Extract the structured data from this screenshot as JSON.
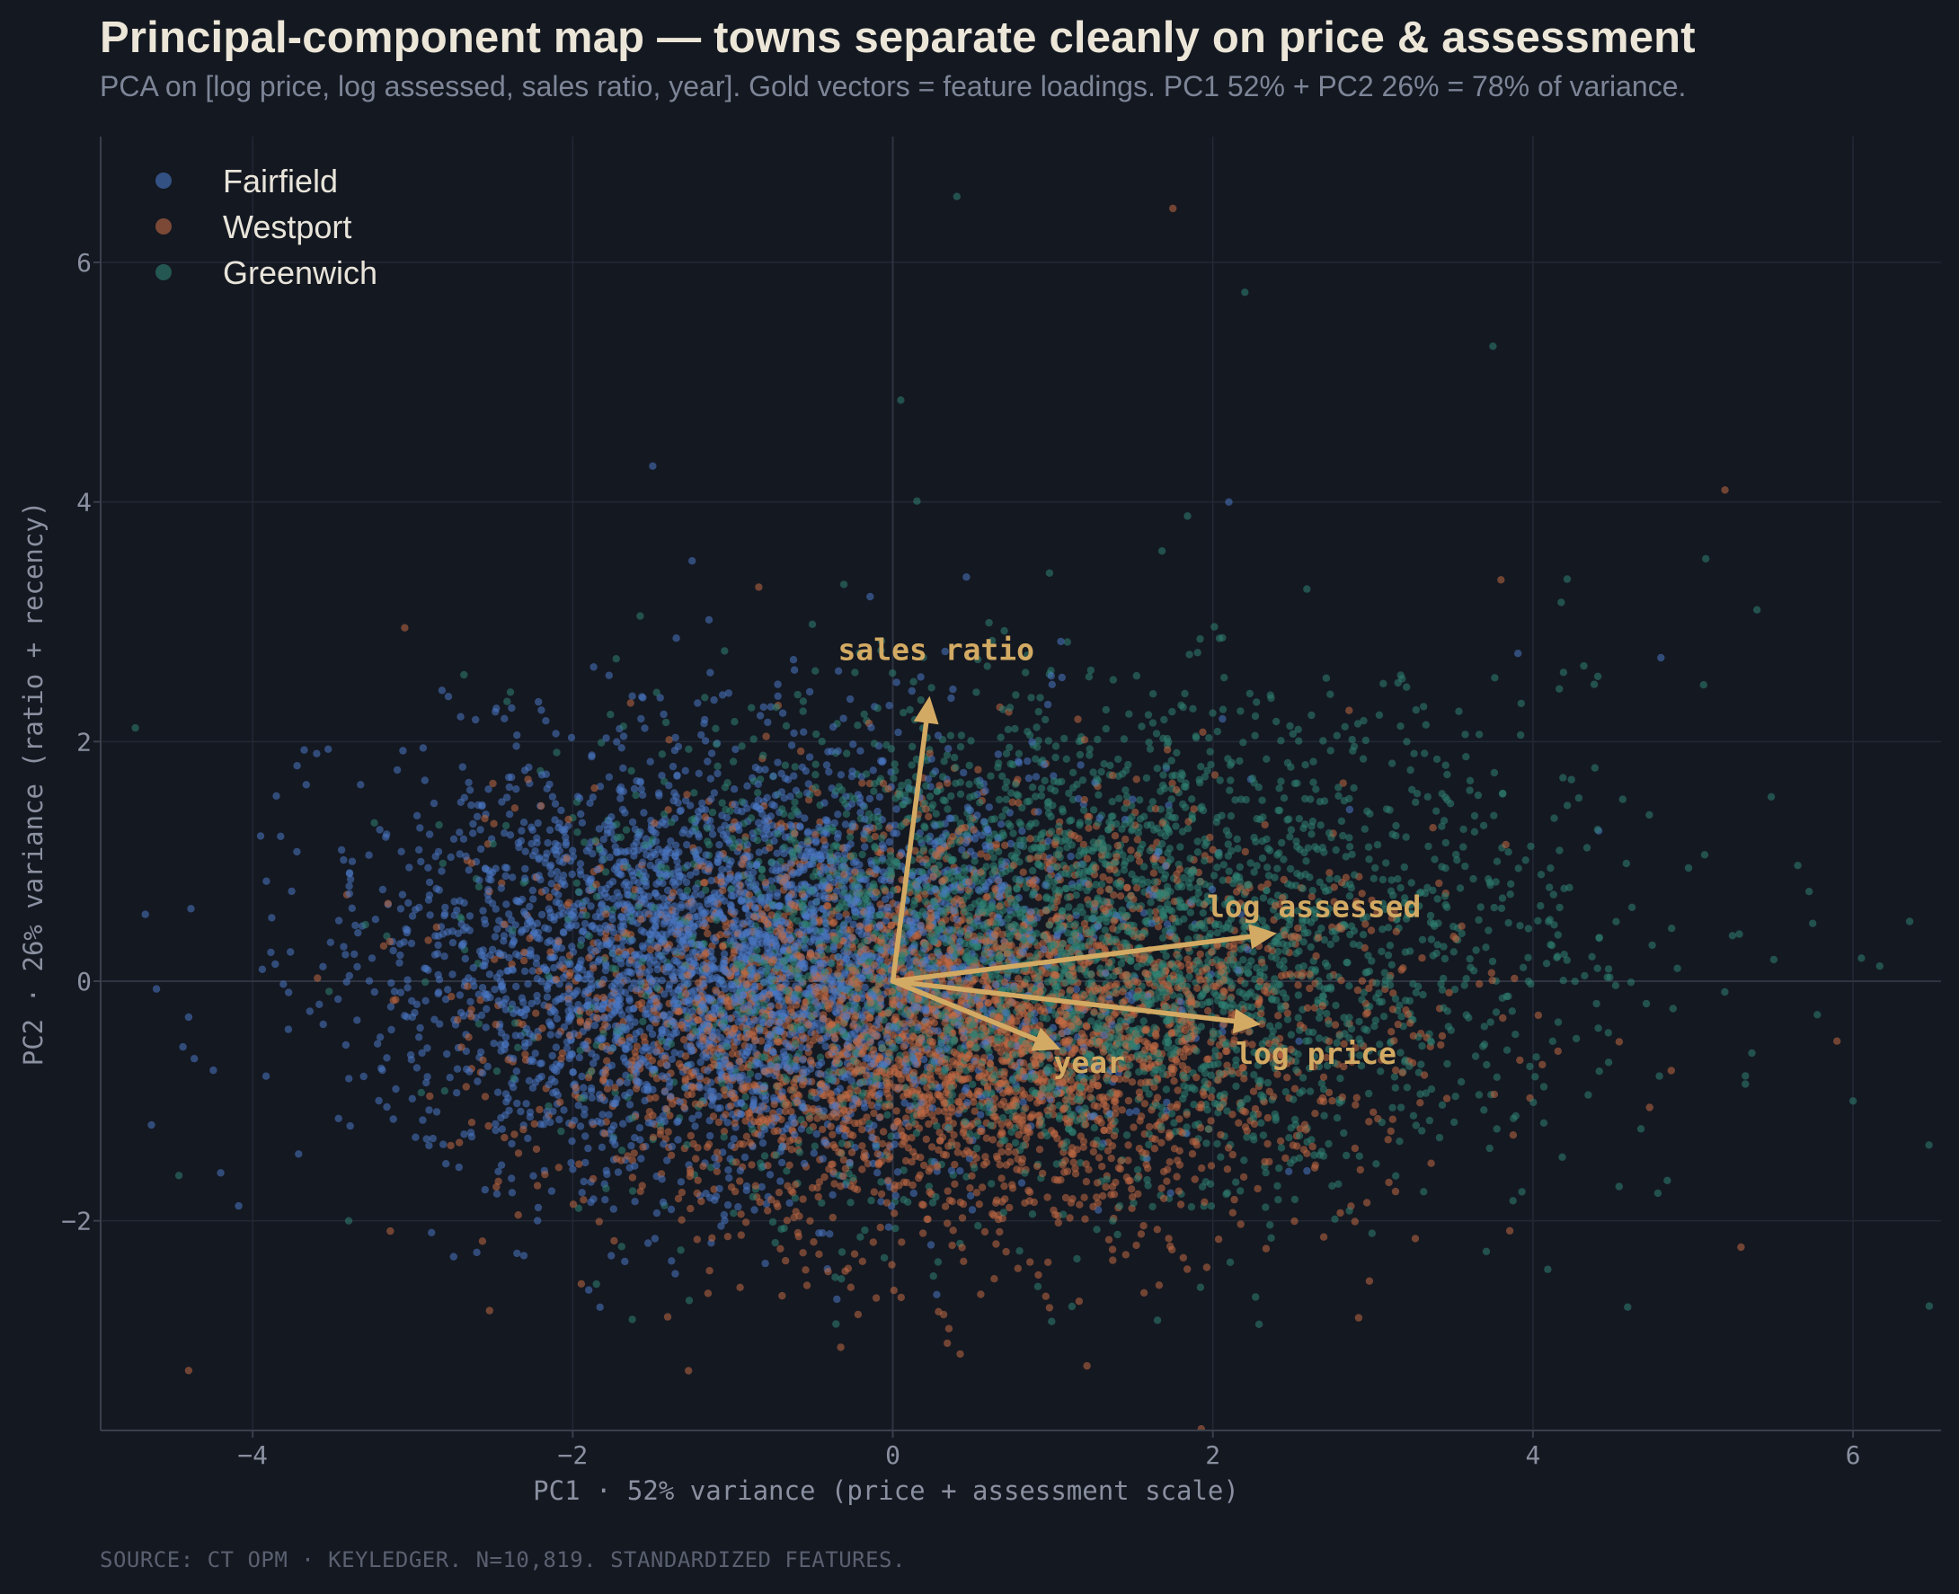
{
  "header": {
    "title": "Principal-component map — towns separate cleanly on price & assessment",
    "subtitle": "PCA on [log price, log assessed, sales ratio, year]. Gold vectors = feature loadings. PC1 52% + PC2 26% = 78% of variance."
  },
  "footer": {
    "source": "SOURCE: CT OPM · KEYLEDGER. N=10,819. STANDARDIZED FEATURES."
  },
  "chart_data": {
    "type": "scatter",
    "xlabel": "PC1 · 52% variance  (price + assessment scale)",
    "ylabel": "PC2 · 26% variance  (ratio + recency)",
    "xlim": [
      -4.95,
      6.55
    ],
    "ylim": [
      -3.75,
      7.05
    ],
    "xticks": [
      -4,
      -2,
      0,
      2,
      4,
      6
    ],
    "yticks": [
      -2,
      0,
      2,
      4,
      6
    ],
    "xtick_labels": [
      "−4",
      "−2",
      "0",
      "2",
      "4",
      "6"
    ],
    "ytick_labels": [
      "−2",
      "0",
      "2",
      "4",
      "6"
    ],
    "grid": true,
    "zero_lines": true,
    "legend_position": "top-left",
    "point_count_reported": "10,819",
    "series": [
      {
        "name": "Fairfield",
        "color": "#4a78c4",
        "center": [
          -1.0,
          0.2
        ],
        "spread": [
          1.05,
          0.85
        ],
        "approx_points": 3600,
        "notable_points": [
          [
            -4.4,
            -0.3
          ],
          [
            -3.6,
            1.9
          ],
          [
            -1.5,
            4.3
          ],
          [
            4.8,
            2.7
          ],
          [
            2.1,
            4.0
          ],
          [
            -4.2,
            -1.6
          ]
        ]
      },
      {
        "name": "Westport",
        "color": "#c06a44",
        "center": [
          0.4,
          -0.4
        ],
        "spread": [
          1.2,
          0.8
        ],
        "approx_points": 3600,
        "notable_points": [
          [
            -4.4,
            -3.25
          ],
          [
            1.75,
            6.45
          ],
          [
            5.2,
            4.1
          ],
          [
            -3.05,
            2.95
          ],
          [
            0.35,
            -2.9
          ],
          [
            5.9,
            -0.5
          ],
          [
            3.8,
            3.35
          ]
        ]
      },
      {
        "name": "Greenwich",
        "color": "#2f8272",
        "center": [
          1.1,
          0.3
        ],
        "spread": [
          1.4,
          0.95
        ],
        "approx_points": 3600,
        "notable_points": [
          [
            0.4,
            6.55
          ],
          [
            0.05,
            4.85
          ],
          [
            2.2,
            5.75
          ],
          [
            3.75,
            5.3
          ],
          [
            6.0,
            -1.0
          ],
          [
            -3.4,
            -2.0
          ],
          [
            5.4,
            3.1
          ]
        ]
      }
    ],
    "loadings": [
      {
        "label": "sales ratio",
        "x": 0.23,
        "y": 2.38
      },
      {
        "label": "log assessed",
        "x": 2.4,
        "y": 0.4
      },
      {
        "label": "log price",
        "x": 2.3,
        "y": -0.36
      },
      {
        "label": "year",
        "x": 1.05,
        "y": -0.57
      }
    ],
    "loading_color": "#d3aa63",
    "background": "#141821"
  }
}
